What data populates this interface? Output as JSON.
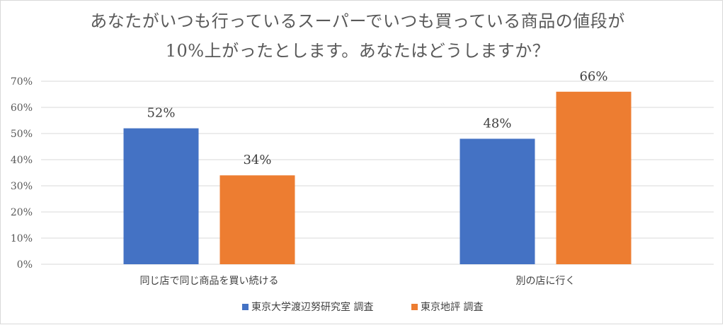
{
  "chart_data": {
    "type": "bar",
    "title_lines": [
      "あなたがいつも行っているスーパーでいつも買っている商品の値段が",
      "10%上がったとします。あなたはどうしますか？"
    ],
    "categories": [
      "同じ店で同じ商品を買い続ける",
      "別の店に行く"
    ],
    "series": [
      {
        "name": "東京大学渡辺努研究室 調査",
        "values": [
          52,
          48
        ],
        "color": "#4472C4"
      },
      {
        "name": "東京地評 調査",
        "values": [
          34,
          66
        ],
        "color": "#ED7D31"
      }
    ],
    "data_labels": [
      [
        "52%",
        "48%"
      ],
      [
        "34%",
        "66%"
      ]
    ],
    "ylim": [
      0,
      70
    ],
    "y_ticks": [
      0,
      10,
      20,
      30,
      40,
      50,
      60,
      70
    ],
    "y_tick_labels": [
      "0%",
      "10%",
      "20%",
      "30%",
      "40%",
      "50%",
      "60%",
      "70%"
    ],
    "grid": true,
    "legend_position": "bottom",
    "colors": {
      "grid": "#D9D9D9",
      "frame": "#D9D9D9"
    }
  }
}
